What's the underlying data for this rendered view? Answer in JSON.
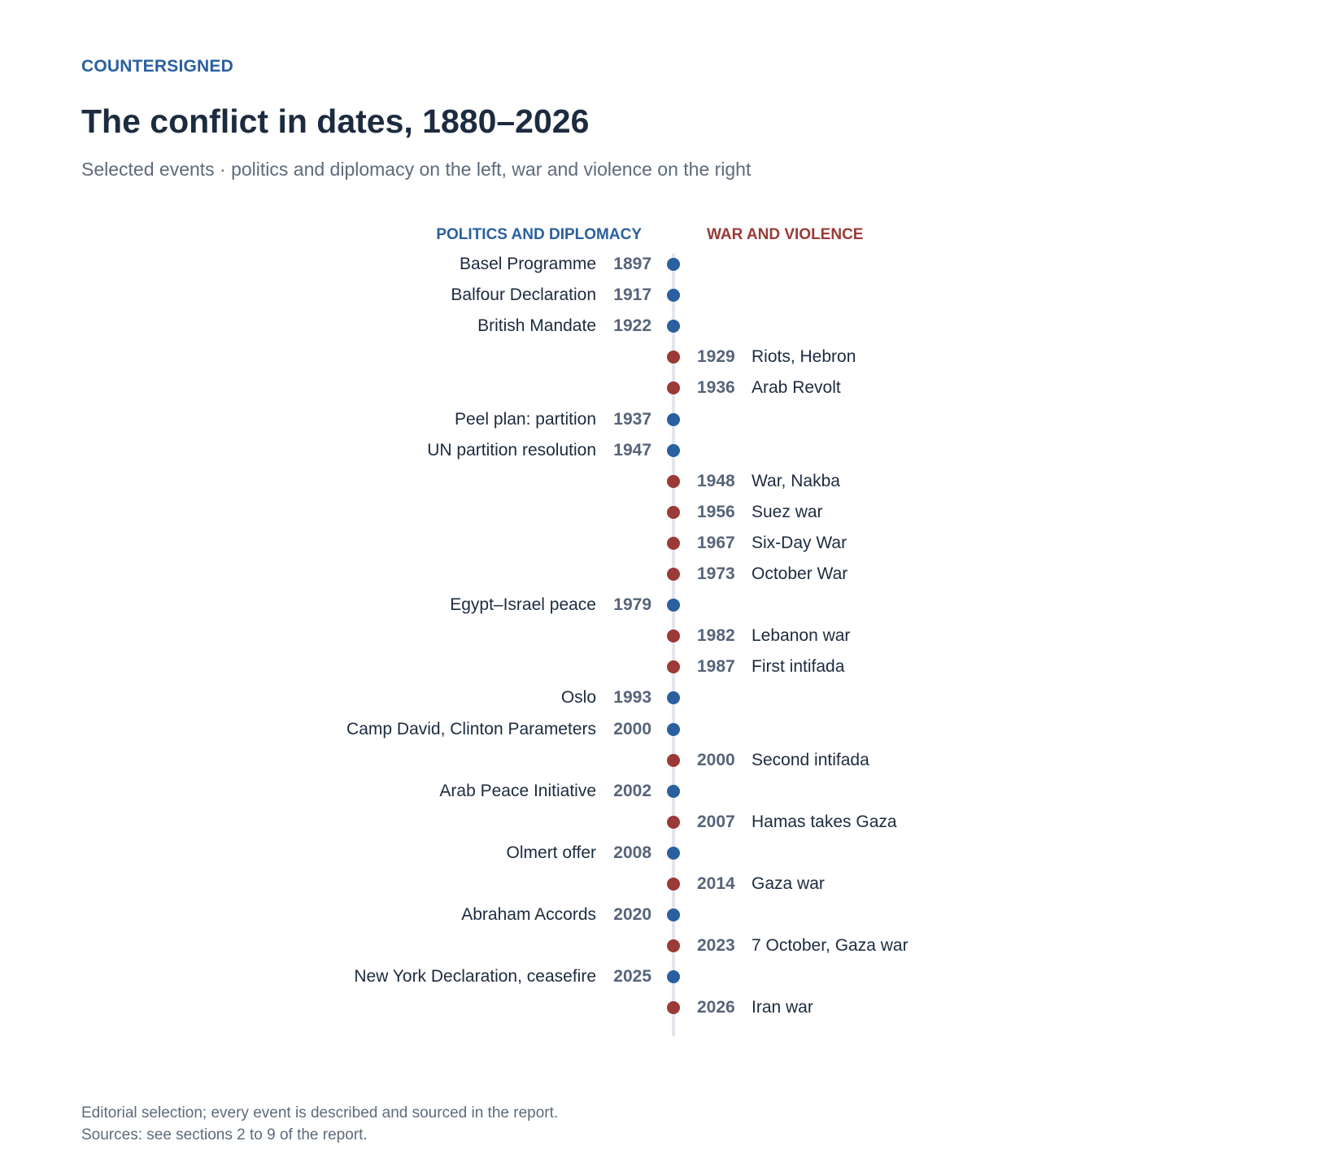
{
  "header": {
    "kicker": "COUNTERSIGNED",
    "title": "The conflict in dates, 1880–2026",
    "subtitle": "Selected events · politics and diplomacy on the left, war and violence on the right"
  },
  "columns": {
    "politics_label": "POLITICS AND DIPLOMACY",
    "war_label": "WAR AND VIOLENCE"
  },
  "colors": {
    "politics": "#2a5fa0",
    "war": "#9b3a36",
    "axis": "#e3e7ec"
  },
  "events": [
    {
      "year": "1897",
      "label": "Basel Programme",
      "category": "politics"
    },
    {
      "year": "1917",
      "label": "Balfour Declaration",
      "category": "politics"
    },
    {
      "year": "1922",
      "label": "British Mandate",
      "category": "politics"
    },
    {
      "year": "1929",
      "label": "Riots, Hebron",
      "category": "war"
    },
    {
      "year": "1936",
      "label": "Arab Revolt",
      "category": "war"
    },
    {
      "year": "1937",
      "label": "Peel plan: partition",
      "category": "politics"
    },
    {
      "year": "1947",
      "label": "UN partition resolution",
      "category": "politics"
    },
    {
      "year": "1948",
      "label": "War, Nakba",
      "category": "war"
    },
    {
      "year": "1956",
      "label": "Suez war",
      "category": "war"
    },
    {
      "year": "1967",
      "label": "Six-Day War",
      "category": "war"
    },
    {
      "year": "1973",
      "label": "October War",
      "category": "war"
    },
    {
      "year": "1979",
      "label": "Egypt–Israel peace",
      "category": "politics"
    },
    {
      "year": "1982",
      "label": "Lebanon war",
      "category": "war"
    },
    {
      "year": "1987",
      "label": "First intifada",
      "category": "war"
    },
    {
      "year": "1993",
      "label": "Oslo",
      "category": "politics"
    },
    {
      "year": "2000",
      "label": "Camp David, Clinton Parameters",
      "category": "politics"
    },
    {
      "year": "2000",
      "label": "Second intifada",
      "category": "war"
    },
    {
      "year": "2002",
      "label": "Arab Peace Initiative",
      "category": "politics"
    },
    {
      "year": "2007",
      "label": "Hamas takes Gaza",
      "category": "war"
    },
    {
      "year": "2008",
      "label": "Olmert offer",
      "category": "politics"
    },
    {
      "year": "2014",
      "label": "Gaza war",
      "category": "war"
    },
    {
      "year": "2020",
      "label": "Abraham Accords",
      "category": "politics"
    },
    {
      "year": "2023",
      "label": "7 October, Gaza war",
      "category": "war"
    },
    {
      "year": "2025",
      "label": "New York Declaration, ceasefire",
      "category": "politics"
    },
    {
      "year": "2026",
      "label": "Iran war",
      "category": "war"
    }
  ],
  "footer": {
    "note": "Editorial selection; every event is described and sourced in the report.",
    "sources": "Sources: see sections 2 to 9 of the report."
  }
}
